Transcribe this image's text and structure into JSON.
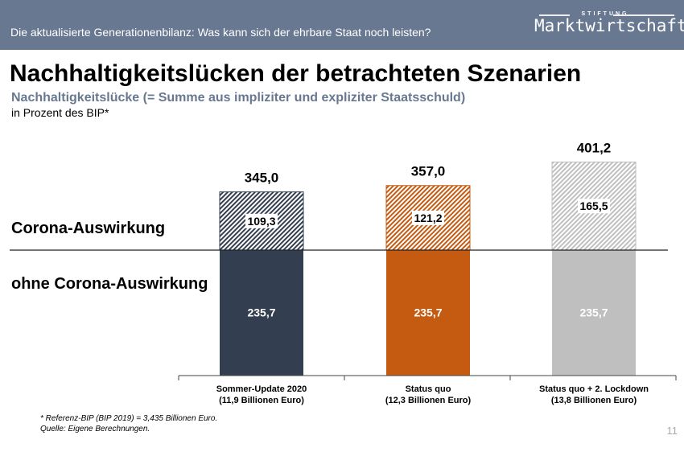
{
  "header": {
    "title": "Die aktualisierte Generationenbilanz: Was kann sich der ehrbare Staat noch leisten?",
    "logo_top": "STIFTUNG",
    "logo_main": "Marktwirtschaft"
  },
  "page_title": "Nachhaltigkeitslücken der betrachteten Szenarien",
  "subtitle": "Nachhaltigkeitslücke (= Summe aus impliziter und expliziter Staatsschuld)",
  "unit": "in Prozent des BIP*",
  "labels": {
    "upper": "Corona-Auswirkung",
    "lower": "ohne Corona-Auswirkung"
  },
  "chart_data": {
    "type": "bar",
    "stacked": true,
    "categories": [
      [
        "Sommer-Update 2020",
        "(11,9 Billionen Euro)"
      ],
      [
        "Status quo",
        "(12,3 Billionen Euro)"
      ],
      [
        "Status quo + 2. Lockdown",
        "(13,8 Billionen Euro)"
      ]
    ],
    "series": [
      {
        "name": "ohne Corona-Auswirkung",
        "values": [
          235.7,
          235.7,
          235.7
        ],
        "labels": [
          "235,7",
          "235,7",
          "235,7"
        ]
      },
      {
        "name": "Corona-Auswirkung",
        "values": [
          109.3,
          121.2,
          165.5
        ],
        "labels": [
          "109,3",
          "121,2",
          "165,5"
        ]
      }
    ],
    "totals": [
      "345,0",
      "357,0",
      "401,2"
    ],
    "colors": [
      "#333f50",
      "#c55a11",
      "#bfbfbf"
    ],
    "ylim": [
      0,
      420
    ]
  },
  "footnotes": [
    "* Referenz-BIP (BIP 2019) = 3,435 Billionen Euro.",
    "Quelle: Eigene Berechnungen."
  ],
  "page_number": "11"
}
